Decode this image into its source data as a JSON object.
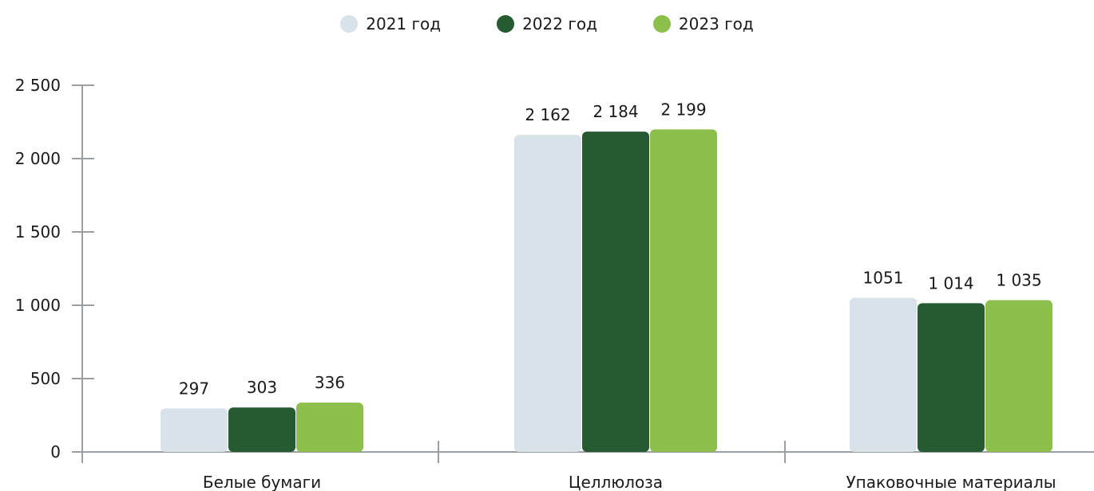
{
  "chart_data": {
    "type": "bar",
    "categories": [
      "Белые бумаги",
      "Целлюлоза",
      "Упаковочные материалы"
    ],
    "series": [
      {
        "name": "2021 год",
        "color": "#d8e2e9",
        "values": [
          297,
          2162,
          1051
        ],
        "labels": [
          "297",
          "2 162",
          "1051"
        ]
      },
      {
        "name": "2022 год",
        "color": "#265a30",
        "values": [
          303,
          2184,
          1014
        ],
        "labels": [
          "303",
          "2 184",
          "1 014"
        ]
      },
      {
        "name": "2023 год",
        "color": "#8cbf4b",
        "values": [
          336,
          2199,
          1035
        ],
        "labels": [
          "336",
          "2 199",
          "1 035"
        ]
      }
    ],
    "yticks": [
      0,
      500,
      1000,
      1500,
      2000,
      2500
    ],
    "ytick_labels": [
      "0",
      "500",
      "1 000",
      "1 500",
      "2 000",
      "2 500"
    ],
    "ylim": [
      0,
      2500
    ],
    "legend_position": "top-center",
    "grid": false
  }
}
